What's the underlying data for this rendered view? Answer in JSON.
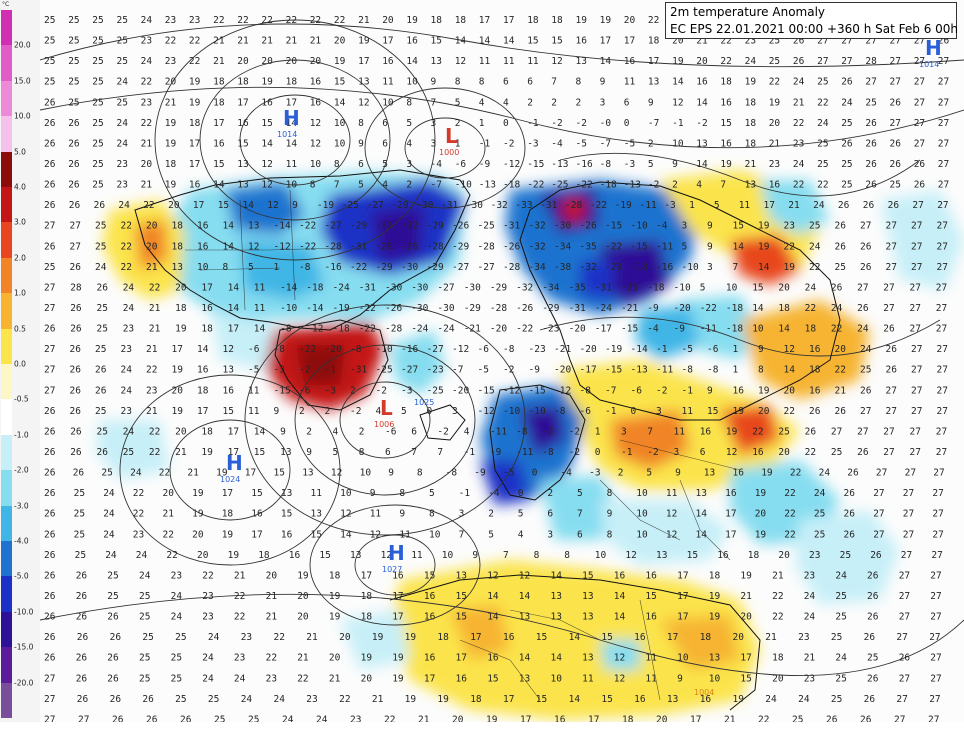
{
  "title": "2m temperature Anomaly",
  "subtitle": "EC EPS 22.01.2021 00:00 +360 h Sat Feb 6 00h",
  "legend": {
    "unit": "°C",
    "labels": [
      "20.0",
      "15.0",
      "10.0",
      "5.0",
      "4.0",
      "3.0",
      "2.0",
      "1.0",
      "0.5",
      "0.0",
      "-0.5",
      "-1.0",
      "-2.0",
      "-3.0",
      "-4.0",
      "-5.0",
      "-10.0",
      "-15.0",
      "-20.0"
    ],
    "colors": [
      "#d12fb3",
      "#e05cc8",
      "#ec8ad9",
      "#f5c0ea",
      "#8c0b0b",
      "#c41616",
      "#e8461e",
      "#f08426",
      "#f6b431",
      "#fbe44c",
      "#fdf7c8",
      "#ffffff",
      "#c7eff8",
      "#86ddf0",
      "#3fb6e6",
      "#1f73cf",
      "#1a30c6",
      "#2d1196",
      "#5a1c98",
      "#7a4d9c"
    ]
  },
  "pressure_centers": [
    {
      "type": "H",
      "value": "1014",
      "color": "#2a5fd6"
    },
    {
      "type": "L",
      "value": "1000",
      "color": "#d33a2c"
    },
    {
      "type": "L",
      "value": "1006",
      "color": "#d33a2c"
    },
    {
      "type": "H",
      "value": "1024",
      "color": "#2a5fd6"
    },
    {
      "type": "H",
      "value": "1027",
      "color": "#2a5fd6"
    },
    {
      "type": "H",
      "value": "1014",
      "color": "#2a5fd6"
    },
    {
      "type": "",
      "value": "1025",
      "color": "#2a5fd6"
    },
    {
      "type": "",
      "value": "1004",
      "color": "#d8831a"
    }
  ],
  "grid_rows": [
    "25 25 25 25 24 23 23 22 22 22 22 22 22 21 20 19 18 18 17 17 18 18 19 19 20 22 23 24 25 26 26 27 27 27 28 27 27 27",
    "25 25 25 25 23 22 22 21 21 21 21 21 20 19 17 16 15 14 14 14 15 15 16 17 17 18 20 21 22 23 25 26 27 27 27 27 27 26",
    "25 25 25 25 24 23 22 21 20 20 20 20 19 17 16 14 13 12 11 11 11 12 13 14 16 17 19 20 22 24 25 26 27 27 28 27 27 27",
    "25 25 25 24 22 20 19 18 18 19 18 16 15 13 11 10 9 8 8 6 6 7 8 9 11 13 14 16 18 19 22 24 25 26 27 27 27 27",
    "26 25 25 25 23 21 19 18 17 16 17 16 14 12 10 8 7 5 4 4 2 2 2 3 6 9 12 14 16 18 19 21 22 24 25 26 27 27",
    "26 26 25 24 22 19 18 17 16 15 14 12 10 8 6 5 3 2 1 0 -1 -2 -2 -0 0 -7 -1 -2 15 18 20 22 24 25 26 27 27 27",
    "26 26 25 24 21 19 17 16 15 14 14 12 10 9 6 4 3 1 -1 -2 -3 -4 -5 -7 -5 2 10 13 16 18 21 23 25 26 26 26 27 27",
    "26 26 25 23 20 18 17 15 13 12 11 10 8 6 5 3 -4 -6 -9 -12 -15 -13 -16 -8 -3 5 9 14 19 21 23 24 25 25 26 26 26 27",
    "26 26 25 23 21 19 16 14 13 12 10 8 7 5 4 2 -7 -10 -13 -18 -22 -25 -22 -18 -13 -2 2 4 7 13 16 22 22 25 26 25 26 27",
    "26 26 26 24 22 20 17 15 14 12 9 -19 -25 -27 -29 -30 -31 -30 -32 -33 -31 -28 -22 -19 -11 -3 1 5 11 17 21 24 26 26 26 27 27",
    "27 27 25 22 20 18 16 14 13 -14 -22 -27 -29 -31 -32 -29 -26 -25 -31 -32 -30 -26 -15 -10 -4 3 9 15 19 23 25 26 27 27 27 27",
    "26 27 25 22 20 18 16 14 12 -12 -22 -28 -31 -29 -26 -28 -29 -28 -26 -32 -34 -35 -22 -15 -11 5 9 14 19 22 24 26 26 27 27 27",
    "25 26 24 22 21 13 10 8 5 1 -8 -16 -22 -29 -30 -29 -27 -27 -28 -34 -38 -32 -29 -18 -16 -10 3 7 14 19 22 25 26 27 27 27",
    "27 28 26 24 22 20 17 14 11 -14 -18 -24 -31 -30 -30 -27 -30 -29 -32 -34 -35 -31 -25 -18 -10 5 10 15 20 24 26 27 27 27 27",
    "27 26 25 24 21 18 16 14 11 -10 -14 -19 -22 -26 -30 -30 -29 -28 -26 -29 -31 -24 -21 -9 -20 -22 -18 14 18 22 24 26 27 27 27",
    "26 26 25 23 21 19 18 17 14 -8 -12 -18 -22 -28 -24 -24 -21 -20 -22 -23 -20 -17 -15 -4 -9 -11 -18 10 14 18 22 24 26 27 27",
    "27 26 25 23 21 17 14 12 -6 -8 -22 -20 -8 -10 -16 -27 -12 -6 -8 -23 -21 -20 -19 -14 -1 -5 -6 1 9 12 16 20 24 26 27 27",
    "27 26 26 24 22 19 16 13 -5 -3 -2 -1 -31 -25 -27 -23 -7 -5 -2 -9 -20 -17 -15 -13 -11 -8 -8 1 8 14 18 22 25 26 27 27",
    "27 26 26 24 23 20 18 16 11 -15 -6 -3 2 -2 -3 -25 -20 -15 -12 -15 -12 -8 -7 -6 -2 -1 9 16 19 20 16 21 26 27 27 27",
    "26 26 25 23 21 19 17 15 11 9 2 2 -2 4 5 0 3 -12 -10 -10 -8 -6 -1 0 3 11 15 19 20 22 26 26 27 27 27 27",
    "26 26 25 24 22 20 18 17 14 9 2 4 2 -6 6 -2 4 -11 -8 -2 -2 1 3 7 11 16 19 22 25 26 27 27 27 27 27",
    "26 26 26 25 22 21 19 17 15 13 9 5 8 6 7 7 -1 -9 -11 -8 -2 0 -1 -2 3 6 12 16 20 22 25 26 27 27 27",
    "26 26 25 24 22 21 19 17 15 13 12 10 9 8 -8 -9 -5 0 -4 -3 2 5 9 13 16 19 22 24 26 27 27 27",
    "26 25 24 22 20 19 17 15 13 11 10 9 8 5 -1 -4 0 2 5 8 10 11 13 16 19 22 24 26 27 27 27",
    "26 25 24 22 21 19 18 16 15 13 12 11 9 8 3 2 5 6 7 9 10 12 14 17 20 22 25 26 27 27 27",
    "26 25 24 23 22 20 19 17 16 15 14 12 11 10 7 5 4 3 6 8 10 12 14 17 19 22 25 26 27 27 27",
    "26 25 24 24 22 20 19 18 16 15 13 12 11 10 9 7 8 8 10 12 13 15 16 18 20 23 25 26 27 27",
    "26 26 25 24 23 22 21 20 19 18 17 16 15 13 12 12 14 15 16 16 17 18 19 21 23 24 26 27 27",
    "26 26 25 25 24 23 22 21 20 19 18 17 16 15 14 14 13 13 14 15 17 19 21 22 24 25 26 27 27",
    "26 26 26 25 24 23 22 21 20 19 18 17 16 15 14 13 13 13 14 16 17 19 20 22 24 25 26 27 27",
    "26 26 26 25 25 24 23 22 21 20 19 19 18 17 16 15 14 15 16 17 18 20 21 23 25 26 27 27",
    "26 26 26 25 25 24 23 22 21 20 19 19 16 17 16 14 14 13 12 11 10 13 17 18 21 24 25 26 27",
    "27 26 26 25 25 24 24 23 22 21 20 19 17 16 15 13 10 11 12 11 9 10 15 20 23 25 26 27 27",
    "27 26 26 26 25 25 24 24 23 22 21 19 19 18 17 15 14 15 16 13 16 19 24 24 25 26 27 27",
    "27 27 26 26 26 25 25 24 24 23 22 21 20 19 17 16 17 18 20 17 21 22 25 26 26 27 27"
  ]
}
